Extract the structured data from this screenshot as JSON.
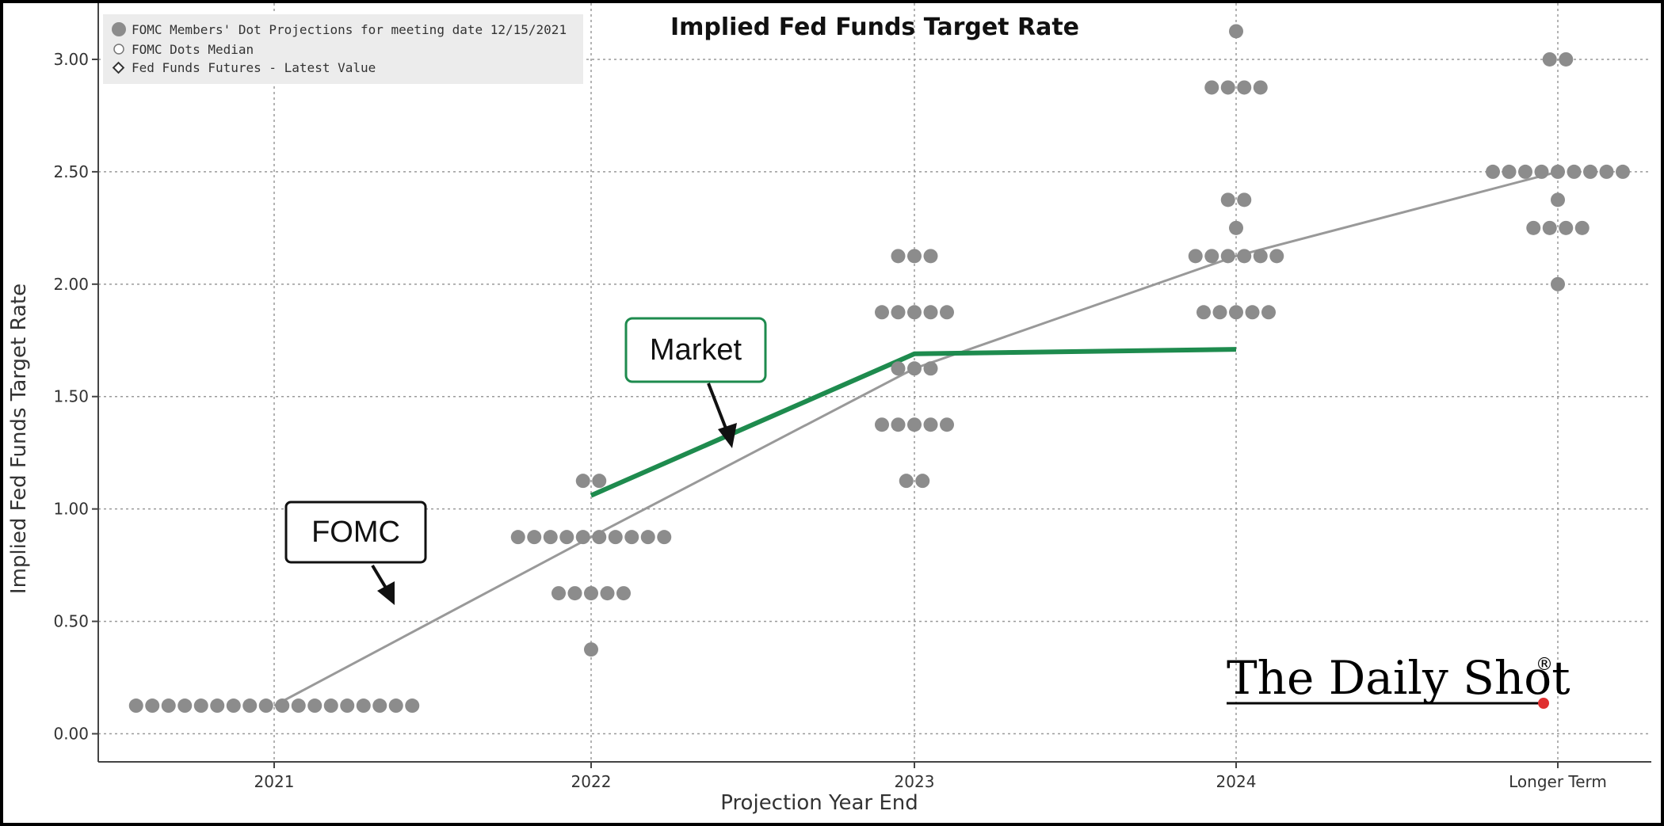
{
  "chart_data": {
    "type": "scatter",
    "title": "Implied Fed Funds Target Rate",
    "xlabel": "Projection Year End",
    "ylabel": "Implied Fed Funds Target Rate",
    "categories": [
      "2021",
      "2022",
      "2023",
      "2024",
      "Longer Term"
    ],
    "ylim": [
      -0.125,
      3.25
    ],
    "yticks": [
      0.0,
      0.5,
      1.0,
      1.5,
      2.0,
      2.5,
      3.0
    ],
    "ytick_labels": [
      "0.00",
      "0.50",
      "1.00",
      "1.50",
      "2.00",
      "2.50",
      "3.00"
    ],
    "grid": true,
    "legend": {
      "placement": "top-left",
      "entries": [
        "FOMC Members' Dot Projections for meeting date 12/15/2021",
        "FOMC Dots Median",
        "Fed Funds Futures - Latest Value"
      ]
    },
    "dot_projections": [
      {
        "category": "2021",
        "dots": [
          {
            "value": 0.125,
            "count": 18
          }
        ]
      },
      {
        "category": "2022",
        "dots": [
          {
            "value": 0.375,
            "count": 1
          },
          {
            "value": 0.625,
            "count": 5
          },
          {
            "value": 0.875,
            "count": 10
          },
          {
            "value": 1.125,
            "count": 2
          }
        ]
      },
      {
        "category": "2023",
        "dots": [
          {
            "value": 1.125,
            "count": 2
          },
          {
            "value": 1.375,
            "count": 5
          },
          {
            "value": 1.625,
            "count": 3
          },
          {
            "value": 1.875,
            "count": 5
          },
          {
            "value": 2.125,
            "count": 3
          }
        ]
      },
      {
        "category": "2024",
        "dots": [
          {
            "value": 1.875,
            "count": 5
          },
          {
            "value": 2.125,
            "count": 6
          },
          {
            "value": 2.25,
            "count": 1
          },
          {
            "value": 2.375,
            "count": 2
          },
          {
            "value": 2.875,
            "count": 4
          },
          {
            "value": 3.125,
            "count": 1
          }
        ]
      },
      {
        "category": "Longer Term",
        "dots": [
          {
            "value": 2.0,
            "count": 1
          },
          {
            "value": 2.25,
            "count": 4
          },
          {
            "value": 2.375,
            "count": 1
          },
          {
            "value": 2.5,
            "count": 9
          },
          {
            "value": 3.0,
            "count": 2
          }
        ]
      }
    ],
    "series": [
      {
        "name": "FOMC Dots Median",
        "color": "#999999",
        "points": [
          {
            "x": "2021",
            "y": 0.125
          },
          {
            "x": "2022",
            "y": 0.875
          },
          {
            "x": "2023",
            "y": 1.625
          },
          {
            "x": "2024",
            "y": 2.125
          },
          {
            "x": "Longer Term",
            "y": 2.5
          }
        ]
      },
      {
        "name": "Fed Funds Futures - Latest Value",
        "color": "#1e8b4e",
        "points": [
          {
            "x": "2022",
            "y": 1.06
          },
          {
            "x": "2023",
            "y": 1.69
          },
          {
            "x": "2024",
            "y": 1.71
          }
        ]
      }
    ],
    "annotations": [
      {
        "text": "Market",
        "color": "#1e8b4e",
        "points_to": "Fed Funds Futures - Latest Value"
      },
      {
        "text": "FOMC",
        "color": "#111111",
        "points_to": "FOMC Dots Median"
      }
    ],
    "dot_color": "#8c8c8c"
  },
  "branding": {
    "text": "The Daily Shot",
    "mark": "®",
    "dot_color": "#e03030"
  }
}
